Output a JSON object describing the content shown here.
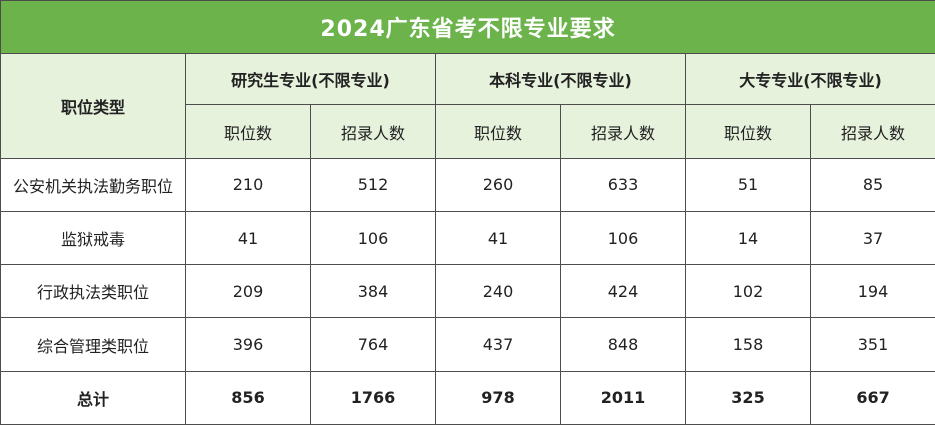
{
  "title": "2024广东省考不限专业要求",
  "header": {
    "type_label": "职位类型",
    "groups": [
      {
        "label": "研究生专业(不限专业)"
      },
      {
        "label": "本科专业(不限专业)"
      },
      {
        "label": "大专专业(不限专业)"
      }
    ],
    "sub_labels": {
      "positions": "职位数",
      "hires": "招录人数"
    }
  },
  "rows": [
    {
      "label": "公安机关执法勤务职位",
      "values": [
        "210",
        "512",
        "260",
        "633",
        "51",
        "85"
      ]
    },
    {
      "label": "监狱戒毒",
      "values": [
        "41",
        "106",
        "41",
        "106",
        "14",
        "37"
      ]
    },
    {
      "label": "行政执法类职位",
      "values": [
        "209",
        "384",
        "240",
        "424",
        "102",
        "194"
      ]
    },
    {
      "label": "综合管理类职位",
      "values": [
        "396",
        "764",
        "437",
        "848",
        "158",
        "351"
      ]
    }
  ],
  "total": {
    "label": "总计",
    "values": [
      "856",
      "1766",
      "978",
      "2011",
      "325",
      "667"
    ]
  },
  "colors": {
    "title_bg": "#6bb34a",
    "header_bg": "#e6f2dc",
    "border": "#4d4d4d"
  }
}
